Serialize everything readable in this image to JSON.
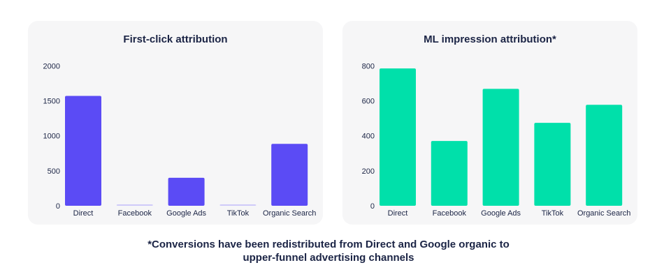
{
  "chart_data": [
    {
      "type": "bar",
      "title": "First-click attribution",
      "categories": [
        "Direct",
        "Facebook",
        "Google Ads",
        "TikTok",
        "Organic Search"
      ],
      "values": [
        1570,
        10,
        400,
        20,
        885
      ],
      "ylim": [
        0,
        2000
      ],
      "yticks": [
        0,
        500,
        1000,
        1500,
        2000
      ],
      "color": "#5b4bf5",
      "xlabel": "",
      "ylabel": "",
      "grid": false
    },
    {
      "type": "bar",
      "title": "ML impression attribution*",
      "categories": [
        "Direct",
        "Facebook",
        "Google Ads",
        "TikTok",
        "Organic Search"
      ],
      "values": [
        785,
        370,
        668,
        474,
        577
      ],
      "ylim": [
        0,
        800
      ],
      "yticks": [
        0,
        200,
        400,
        600,
        800
      ],
      "color": "#00e0aa",
      "xlabel": "",
      "ylabel": "",
      "grid": false
    }
  ],
  "footnote": {
    "line1": "*Conversions have been redistributed from Direct and Google organic to",
    "line2": "upper-funnel advertising channels"
  }
}
